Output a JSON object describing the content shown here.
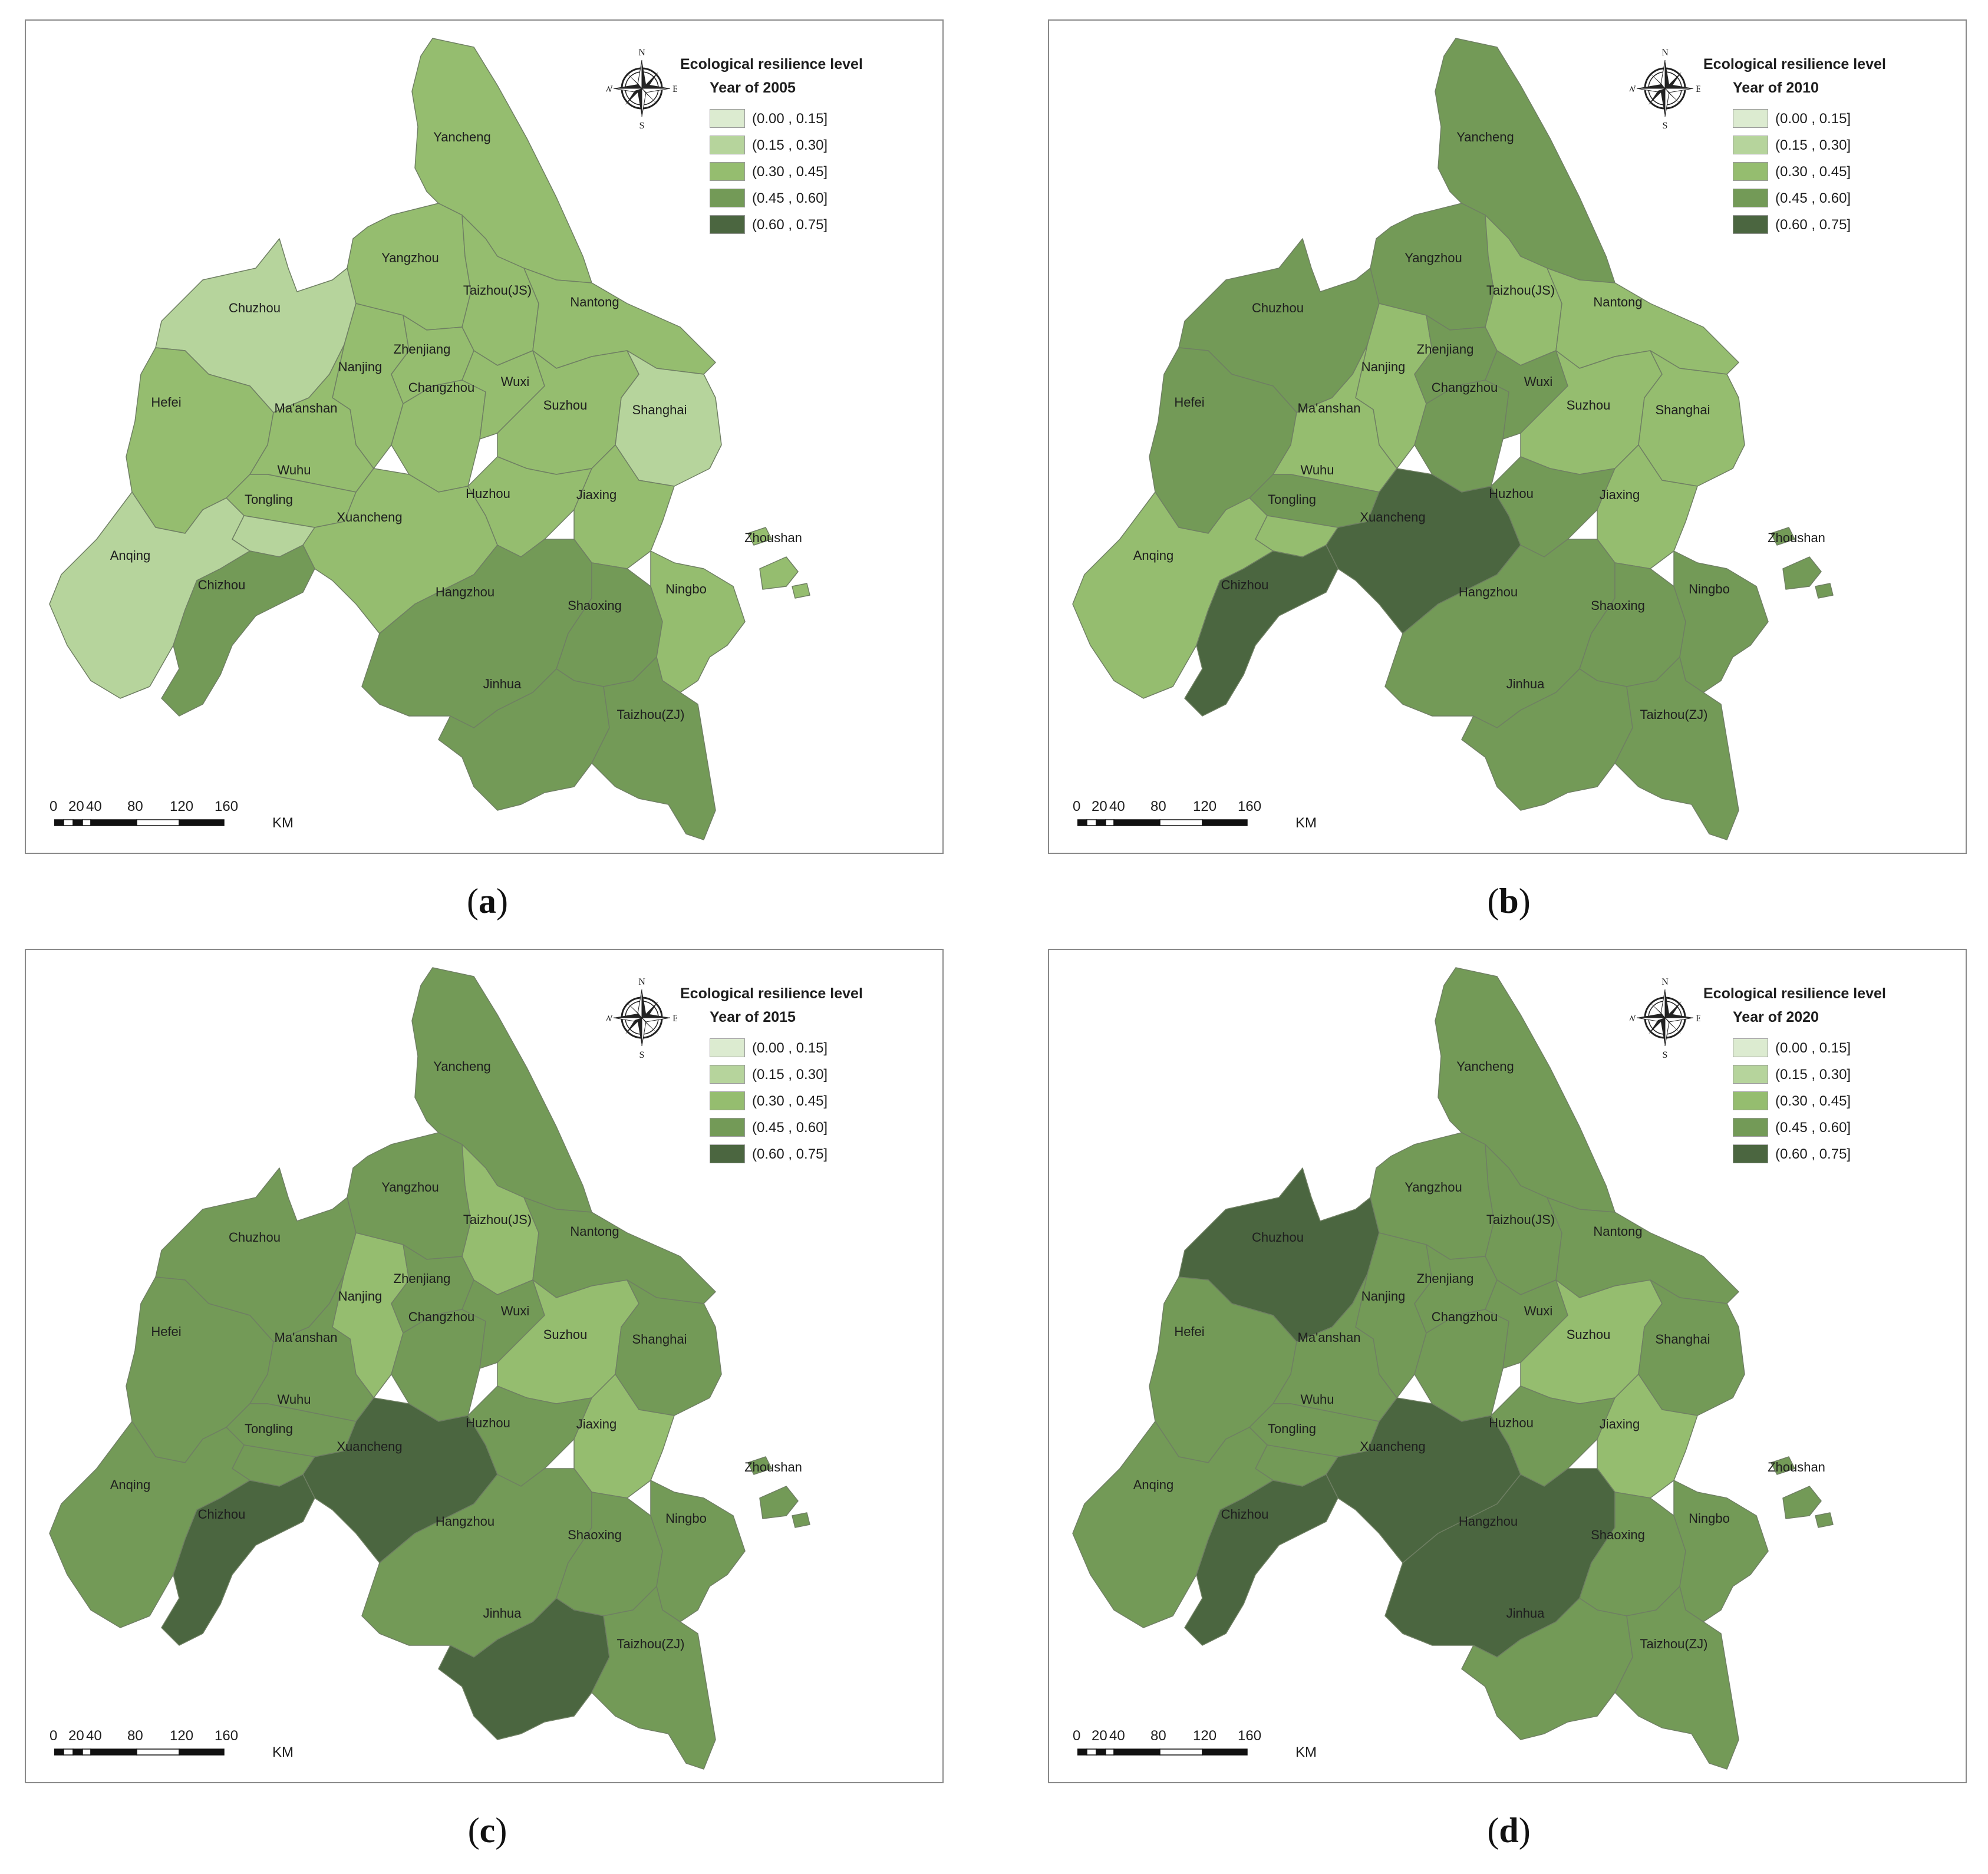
{
  "legend_title": "Ecological resilience level",
  "legend_classes": [
    {
      "label": "(0.00 , 0.15]",
      "color": "#dcebd0"
    },
    {
      "label": "(0.15 , 0.30]",
      "color": "#b6d49c"
    },
    {
      "label": "(0.30 , 0.45]",
      "color": "#95bd6f"
    },
    {
      "label": "(0.45 , 0.60]",
      "color": "#739a57"
    },
    {
      "label": "(0.60 , 0.75]",
      "color": "#4b6640"
    }
  ],
  "compass": {
    "n": "N",
    "s": "S",
    "e": "E",
    "w": "W"
  },
  "scale": {
    "ticks": [
      "0",
      "20",
      "40",
      "80",
      "120",
      "160"
    ],
    "unit": "KM"
  },
  "cities": [
    "Yancheng",
    "Yangzhou",
    "Taizhou(JS)",
    "Nantong",
    "Chuzhou",
    "Nanjing",
    "Zhenjiang",
    "Changzhou",
    "Wuxi",
    "Suzhou",
    "Shanghai",
    "Hefei",
    "Ma'anshan",
    "Wuhu",
    "Tongling",
    "Xuancheng",
    "Huzhou",
    "Jiaxing",
    "Anqing",
    "Chizhou",
    "Hangzhou",
    "Shaoxing",
    "Ningbo",
    "Zhoushan",
    "Jinhua",
    "Taizhou(ZJ)"
  ],
  "panels": [
    {
      "caption_letter": "a",
      "year_label": "Year of 2005",
      "levels": {
        "Yancheng": 2,
        "Yangzhou": 2,
        "Taizhou(JS)": 2,
        "Nantong": 2,
        "Chuzhou": 1,
        "Nanjing": 2,
        "Zhenjiang": 2,
        "Changzhou": 2,
        "Wuxi": 2,
        "Suzhou": 2,
        "Shanghai": 1,
        "Hefei": 2,
        "Ma'anshan": 2,
        "Wuhu": 2,
        "Tongling": 1,
        "Xuancheng": 2,
        "Huzhou": 2,
        "Jiaxing": 2,
        "Anqing": 1,
        "Chizhou": 3,
        "Hangzhou": 3,
        "Shaoxing": 3,
        "Ningbo": 2,
        "Zhoushan": 2,
        "Jinhua": 3,
        "Taizhou(ZJ)": 3
      }
    },
    {
      "caption_letter": "b",
      "year_label": "Year of 2010",
      "levels": {
        "Yancheng": 3,
        "Yangzhou": 3,
        "Taizhou(JS)": 2,
        "Nantong": 2,
        "Chuzhou": 3,
        "Nanjing": 2,
        "Zhenjiang": 3,
        "Changzhou": 3,
        "Wuxi": 3,
        "Suzhou": 2,
        "Shanghai": 2,
        "Hefei": 3,
        "Ma'anshan": 2,
        "Wuhu": 3,
        "Tongling": 2,
        "Xuancheng": 4,
        "Huzhou": 3,
        "Jiaxing": 2,
        "Anqing": 2,
        "Chizhou": 4,
        "Hangzhou": 3,
        "Shaoxing": 3,
        "Ningbo": 3,
        "Zhoushan": 3,
        "Jinhua": 3,
        "Taizhou(ZJ)": 3
      }
    },
    {
      "caption_letter": "c",
      "year_label": "Year of 2015",
      "levels": {
        "Yancheng": 3,
        "Yangzhou": 3,
        "Taizhou(JS)": 2,
        "Nantong": 3,
        "Chuzhou": 3,
        "Nanjing": 2,
        "Zhenjiang": 3,
        "Changzhou": 3,
        "Wuxi": 3,
        "Suzhou": 2,
        "Shanghai": 3,
        "Hefei": 3,
        "Ma'anshan": 3,
        "Wuhu": 3,
        "Tongling": 3,
        "Xuancheng": 4,
        "Huzhou": 3,
        "Jiaxing": 2,
        "Anqing": 3,
        "Chizhou": 4,
        "Hangzhou": 3,
        "Shaoxing": 3,
        "Ningbo": 3,
        "Zhoushan": 3,
        "Jinhua": 4,
        "Taizhou(ZJ)": 3
      }
    },
    {
      "caption_letter": "d",
      "year_label": "Year of 2020",
      "levels": {
        "Yancheng": 3,
        "Yangzhou": 3,
        "Taizhou(JS)": 3,
        "Nantong": 3,
        "Chuzhou": 4,
        "Nanjing": 3,
        "Zhenjiang": 3,
        "Changzhou": 3,
        "Wuxi": 3,
        "Suzhou": 2,
        "Shanghai": 3,
        "Hefei": 3,
        "Ma'anshan": 3,
        "Wuhu": 3,
        "Tongling": 3,
        "Xuancheng": 4,
        "Huzhou": 3,
        "Jiaxing": 2,
        "Anqing": 3,
        "Chizhou": 4,
        "Hangzhou": 4,
        "Shaoxing": 3,
        "Ningbo": 3,
        "Zhoushan": 3,
        "Jinhua": 3,
        "Taizhou(ZJ)": 3
      }
    }
  ]
}
